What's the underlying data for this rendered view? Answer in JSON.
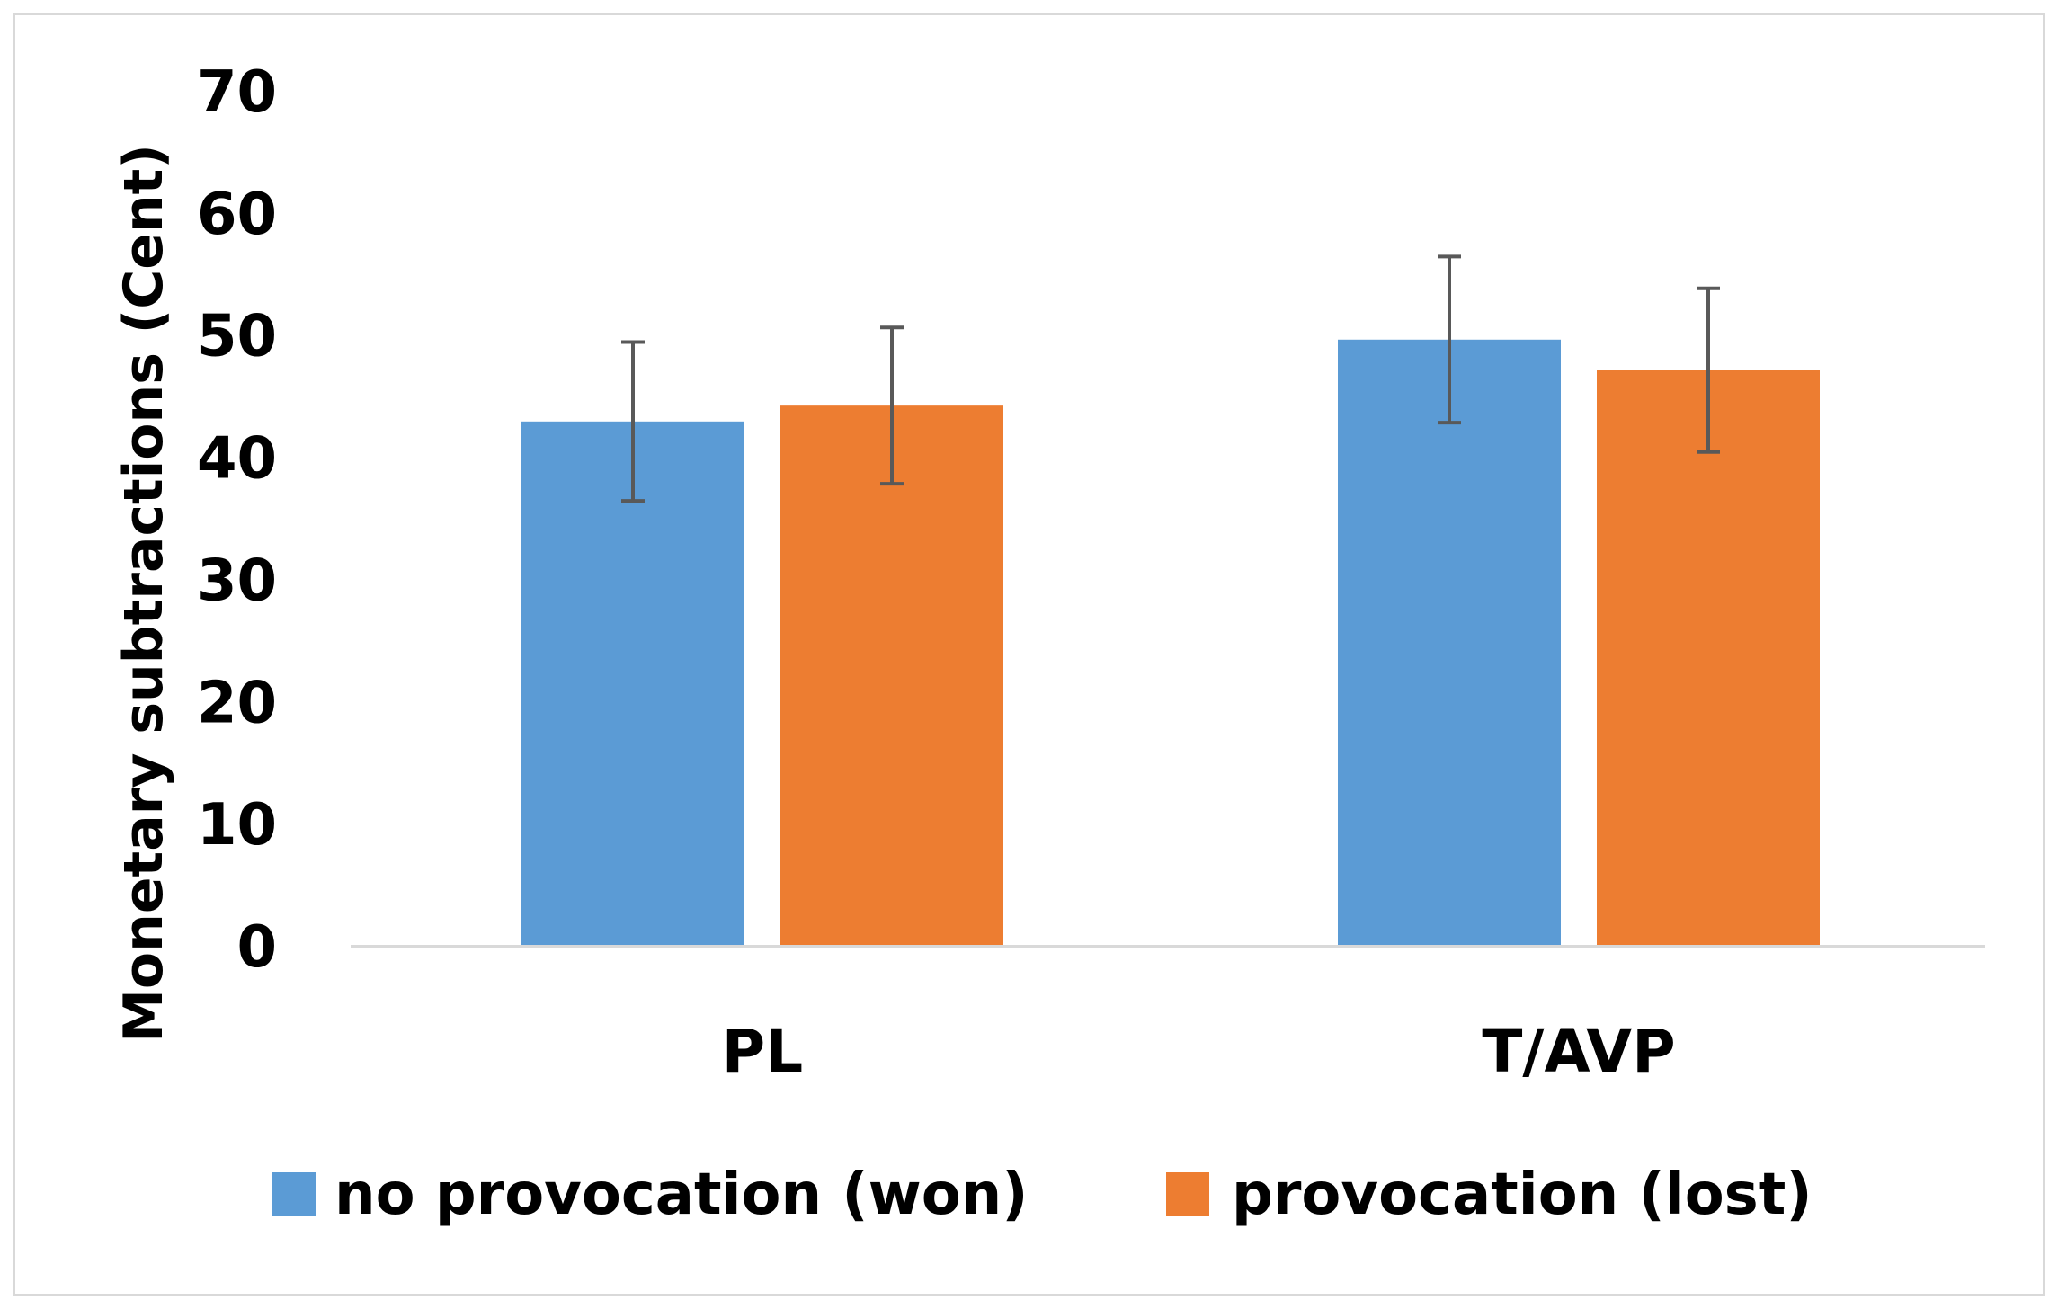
{
  "chart_data": {
    "type": "bar",
    "title": "",
    "xlabel": "",
    "ylabel": "Monetary subtractions (Cent)",
    "ylim": [
      0,
      70
    ],
    "yticks": [
      "0",
      "10",
      "20",
      "30",
      "40",
      "50",
      "60",
      "70"
    ],
    "categories": [
      "PL",
      "T/AVP"
    ],
    "series": [
      {
        "name": "no provocation (won)",
        "color": "#5B9BD5",
        "values": [
          43.0,
          49.7
        ],
        "error": [
          6.5,
          6.8
        ]
      },
      {
        "name": "provocation (lost)",
        "color": "#ED7D31",
        "values": [
          44.3,
          47.2
        ],
        "error": [
          6.4,
          6.7
        ]
      }
    ],
    "legend_position": "bottom",
    "grid": false
  }
}
